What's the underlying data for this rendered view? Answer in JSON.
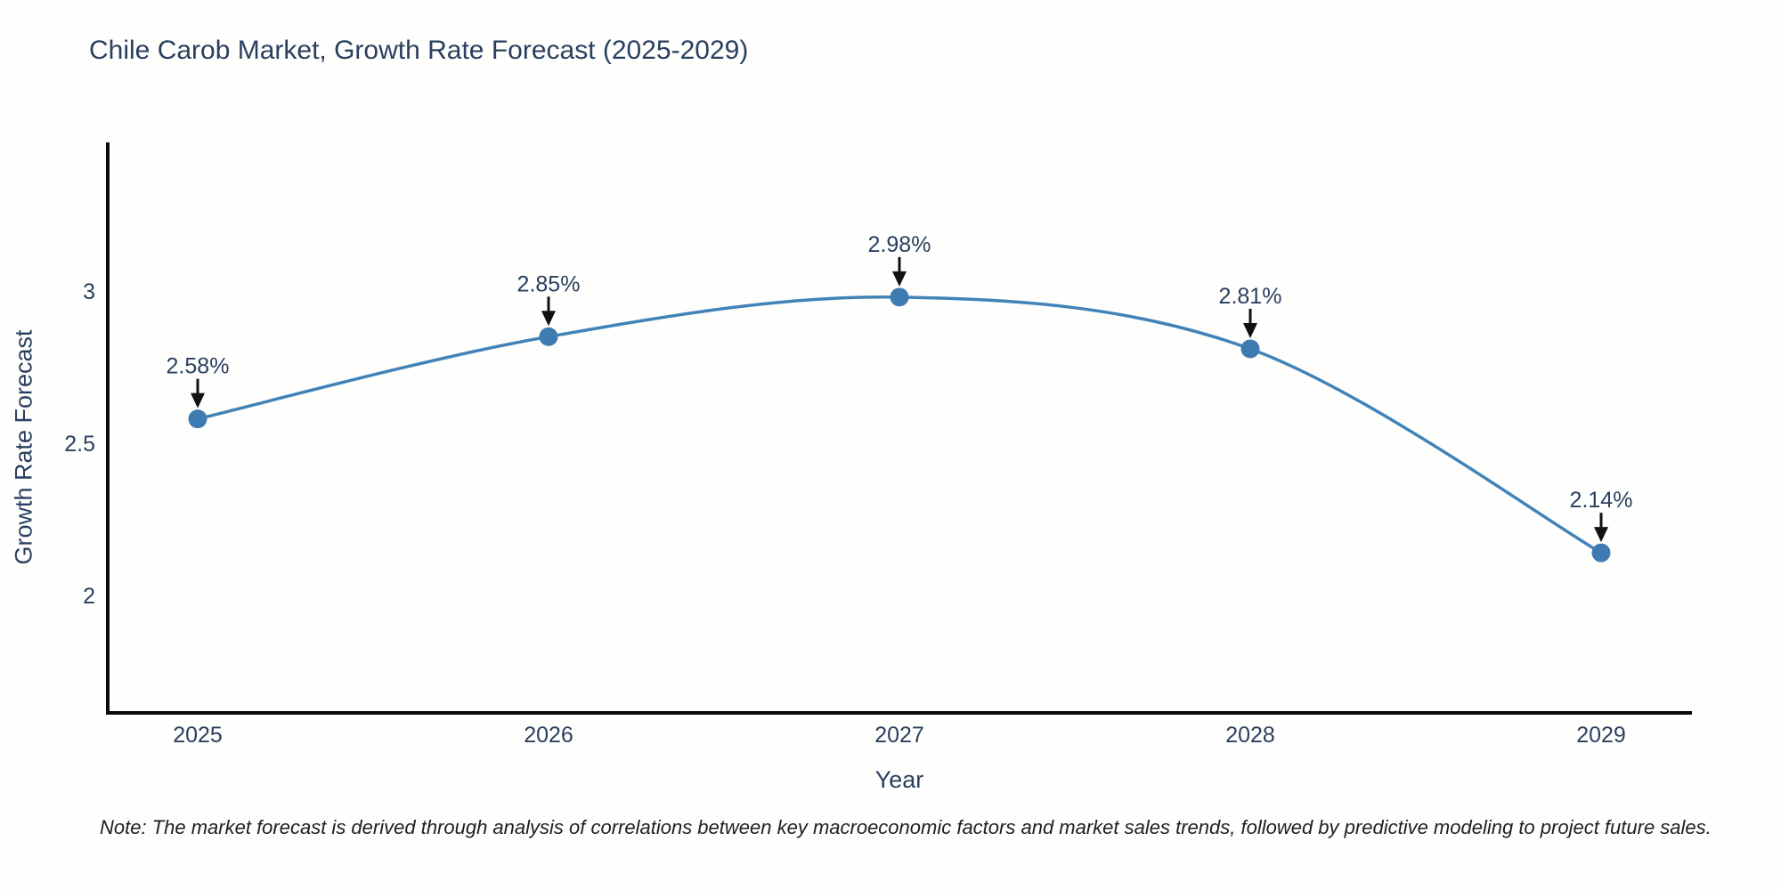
{
  "title": "Chile Carob Market, Growth Rate Forecast (2025-2029)",
  "note": "Note: The market forecast is derived through analysis of correlations between key macroeconomic factors and market sales trends, followed by predictive modeling to project future sales.",
  "chart_data": {
    "type": "line",
    "title": "Chile Carob Market, Growth Rate Forecast (2025-2029)",
    "xlabel": "Year",
    "ylabel": "Growth Rate Forecast",
    "categories": [
      "2025",
      "2026",
      "2027",
      "2028",
      "2029"
    ],
    "series": [
      {
        "name": "Growth Rate Forecast",
        "values": [
          2.58,
          2.85,
          2.98,
          2.81,
          2.14
        ]
      }
    ],
    "annotations": [
      "2.58%",
      "2.85%",
      "2.98%",
      "2.81%",
      "2.14%"
    ],
    "yticks": [
      2,
      2.5,
      3
    ],
    "ylim": [
      1.6,
      3.5
    ],
    "grid": false,
    "legend_position": "none",
    "line_shape": "spline",
    "line_color": "#4183b8",
    "marker_color": "#3e7bb0",
    "axis_color": "#0a0a0a",
    "text_color": "#2a3f5f",
    "annotation_arrow_color": "#111111"
  }
}
